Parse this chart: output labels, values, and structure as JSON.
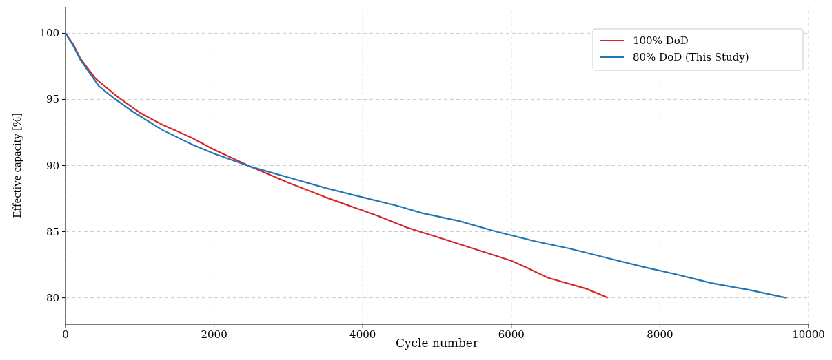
{
  "chart_data": {
    "type": "line",
    "xlabel": "Cycle number",
    "ylabel": "Effective capacity [%]",
    "xlim": [
      0,
      10000
    ],
    "ylim": [
      78,
      102
    ],
    "xticks": [
      0,
      2000,
      4000,
      6000,
      8000,
      10000
    ],
    "yticks": [
      80,
      85,
      90,
      95,
      100
    ],
    "grid": true,
    "legend": "top right",
    "line_style": "solid",
    "marker": "none",
    "series": [
      {
        "name": "100% DoD",
        "color": "#d62728",
        "x": [
          0,
          100,
          200,
          400,
          700,
          1000,
          1300,
          1700,
          2000,
          2500,
          3000,
          3500,
          4000,
          4200,
          4600,
          5000,
          5500,
          6000,
          6200,
          6500,
          7000,
          7300
        ],
        "values": [
          100,
          99.2,
          98.1,
          96.6,
          95.2,
          94.0,
          93.1,
          92.1,
          91.2,
          89.9,
          88.7,
          87.6,
          86.6,
          86.2,
          85.3,
          84.6,
          83.7,
          82.8,
          82.3,
          81.5,
          80.7,
          80.0
        ]
      },
      {
        "name": "80% DoD (This Study)",
        "color": "#1f77b4",
        "x": [
          0,
          100,
          200,
          450,
          650,
          900,
          1300,
          1700,
          2000,
          2500,
          3000,
          3500,
          4000,
          4500,
          4800,
          5300,
          5800,
          6300,
          6800,
          7300,
          7800,
          8200,
          8700,
          9200,
          9700
        ],
        "values": [
          100,
          99.1,
          98.0,
          96.0,
          95.1,
          94.1,
          92.7,
          91.6,
          90.9,
          89.9,
          89.1,
          88.3,
          87.6,
          86.9,
          86.4,
          85.8,
          85.0,
          84.3,
          83.7,
          83.0,
          82.3,
          81.8,
          81.1,
          80.6,
          80.0
        ]
      }
    ]
  }
}
